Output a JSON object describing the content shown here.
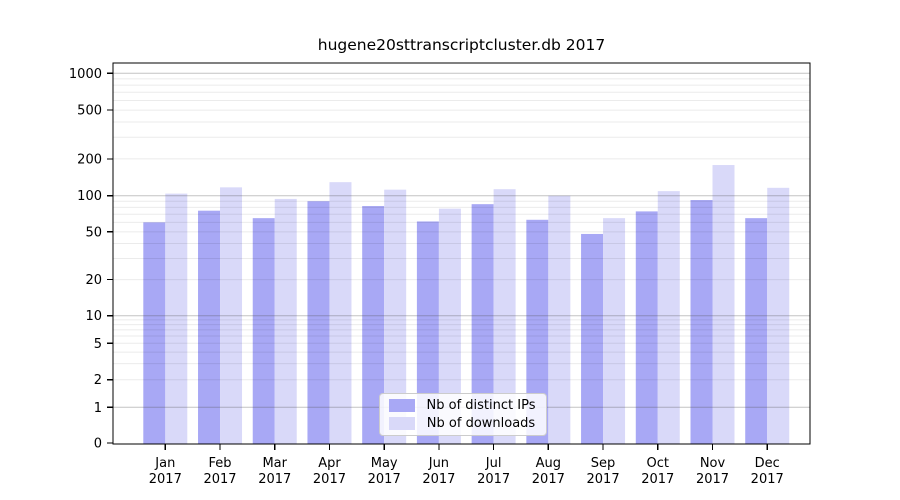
{
  "chart_data": {
    "type": "bar",
    "title": "hugene20sttranscriptcluster.db 2017",
    "categories": [
      "Jan",
      "Feb",
      "Mar",
      "Apr",
      "May",
      "Jun",
      "Jul",
      "Aug",
      "Sep",
      "Oct",
      "Nov",
      "Dec"
    ],
    "category_year": "2017",
    "series": [
      {
        "name": "Nb of distinct IPs",
        "color": "#a8a8f5",
        "values": [
          60,
          75,
          65,
          90,
          82,
          61,
          85,
          63,
          48,
          74,
          92,
          65
        ]
      },
      {
        "name": "Nb of downloads",
        "color": "#d9d9f9",
        "values": [
          104,
          117,
          94,
          129,
          112,
          78,
          113,
          100,
          65,
          109,
          178,
          116
        ]
      }
    ],
    "yticks": [
      0,
      1,
      2,
      5,
      10,
      20,
      50,
      100,
      200,
      500,
      1000
    ],
    "yscale": "symlog",
    "ylim": [
      0,
      1000
    ],
    "grid": true,
    "legend_position": "bottom-center",
    "colors": {
      "axis": "#000000",
      "grid_major": "rgba(80,80,80,0.35)",
      "grid_minor": "rgba(0,0,0,0.08)",
      "tick_text": "#000000"
    }
  }
}
